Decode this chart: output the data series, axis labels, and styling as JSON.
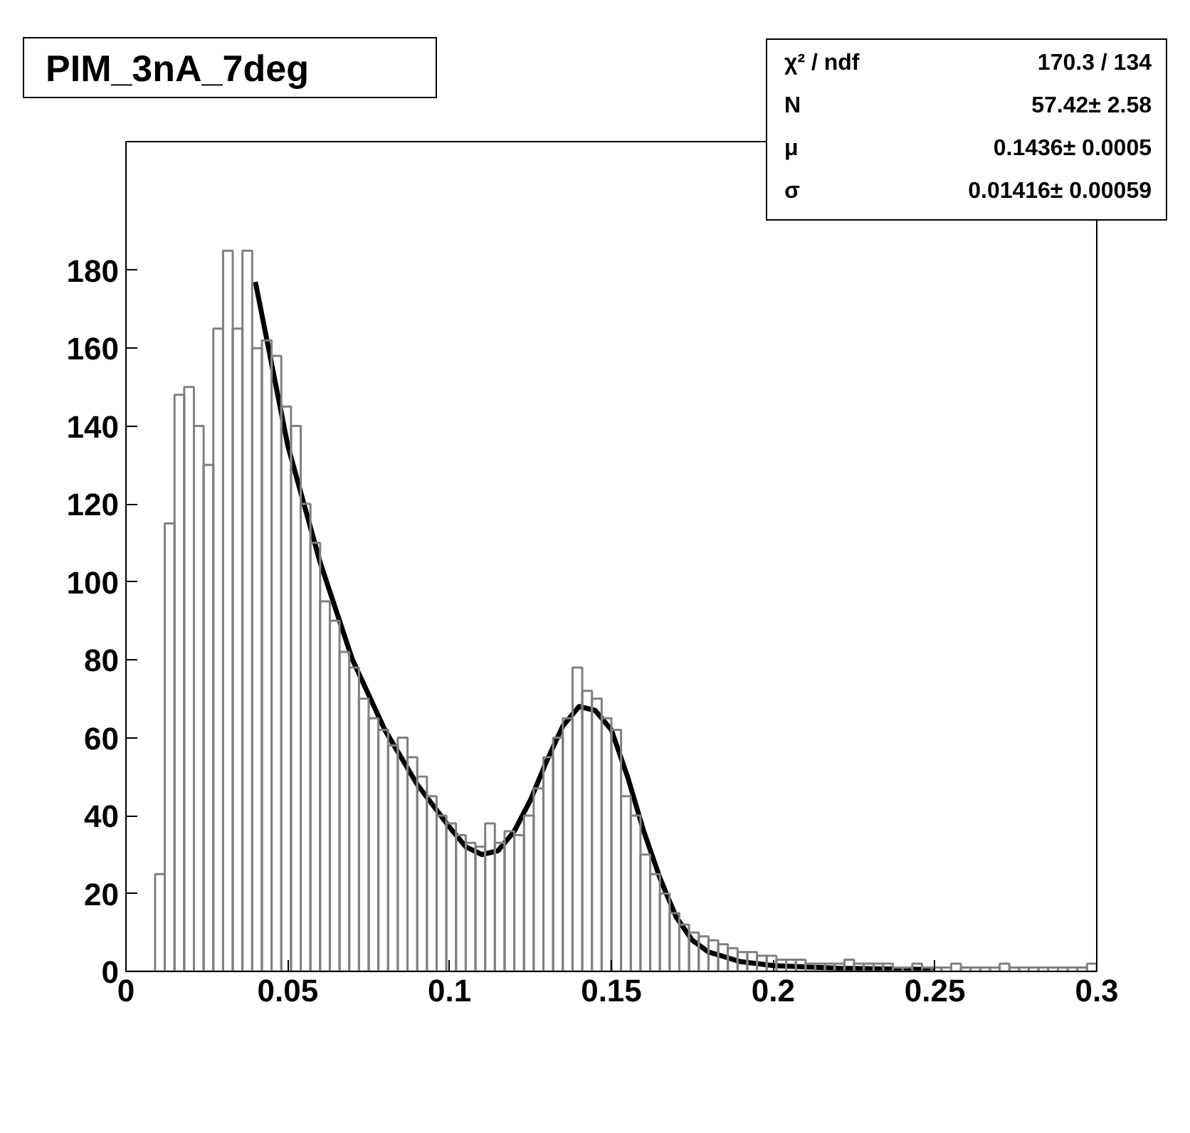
{
  "chart_data": {
    "type": "histogram",
    "title": "PIM_3nA_7deg",
    "bins": [
      0,
      0.003,
      0.006,
      0.009,
      0.012,
      0.015,
      0.018,
      0.021,
      0.024,
      0.027,
      0.03,
      0.033,
      0.036,
      0.039,
      0.042,
      0.045,
      0.048,
      0.051,
      0.054,
      0.057,
      0.06,
      0.063,
      0.066,
      0.069,
      0.072,
      0.075,
      0.078,
      0.081,
      0.084,
      0.087,
      0.09,
      0.093,
      0.096,
      0.099,
      0.102,
      0.105,
      0.108,
      0.111,
      0.114,
      0.117,
      0.12,
      0.123,
      0.126,
      0.129,
      0.132,
      0.135,
      0.138,
      0.141,
      0.144,
      0.147,
      0.15,
      0.153,
      0.156,
      0.159,
      0.162,
      0.165,
      0.168,
      0.171,
      0.174,
      0.177,
      0.18,
      0.183,
      0.186,
      0.189,
      0.192,
      0.195,
      0.198,
      0.201,
      0.204,
      0.207,
      0.21,
      0.213,
      0.216,
      0.219,
      0.222,
      0.225,
      0.228,
      0.231,
      0.234,
      0.237,
      0.24,
      0.243,
      0.246,
      0.249,
      0.252,
      0.255,
      0.258,
      0.261,
      0.264,
      0.267,
      0.27,
      0.273,
      0.276,
      0.279,
      0.282,
      0.285,
      0.288,
      0.291,
      0.294,
      0.297,
      0.3
    ],
    "values": [
      0,
      0,
      0,
      25,
      115,
      148,
      150,
      140,
      130,
      165,
      185,
      165,
      185,
      160,
      162,
      158,
      145,
      140,
      120,
      110,
      95,
      90,
      82,
      78,
      70,
      65,
      62,
      58,
      60,
      55,
      50,
      45,
      40,
      38,
      35,
      33,
      32,
      38,
      33,
      36,
      35,
      40,
      47,
      55,
      60,
      65,
      78,
      72,
      70,
      65,
      62,
      45,
      40,
      30,
      25,
      20,
      15,
      12,
      10,
      9,
      8,
      7,
      6,
      5,
      5,
      4,
      4,
      3,
      3,
      3,
      2,
      2,
      2,
      2,
      3,
      2,
      2,
      2,
      2,
      1,
      1,
      2,
      1,
      1,
      1,
      2,
      1,
      1,
      1,
      1,
      2,
      1,
      1,
      1,
      1,
      1,
      1,
      1,
      1,
      2
    ],
    "color": "#808080",
    "series": [
      {
        "type": "line",
        "color": "#000000",
        "x": [
          0.04,
          0.05,
          0.06,
          0.07,
          0.08,
          0.09,
          0.1,
          0.105,
          0.11,
          0.115,
          0.12,
          0.125,
          0.13,
          0.135,
          0.14,
          0.145,
          0.15,
          0.155,
          0.16,
          0.165,
          0.17,
          0.175,
          0.18,
          0.19,
          0.2,
          0.22,
          0.25
        ],
        "values": [
          177,
          135,
          105,
          80,
          62,
          48,
          37,
          32,
          30,
          31,
          36,
          44,
          54,
          63,
          68,
          67,
          62,
          50,
          36,
          24,
          14,
          8,
          5,
          2.5,
          1.5,
          0.8,
          0.5
        ]
      }
    ],
    "xlim": [
      0,
      0.3
    ],
    "ylim": [
      0,
      213
    ],
    "xticks": [
      0,
      0.05,
      0.1,
      0.15,
      0.2,
      0.25,
      0.3
    ],
    "yticks": [
      0,
      20,
      40,
      60,
      80,
      100,
      120,
      140,
      160,
      180
    ],
    "grid": false,
    "annotations": [
      "χ² / ndf",
      "170.3 / 134",
      "N",
      "57.42± 2.58",
      "μ",
      "0.1436± 0.0005",
      "σ",
      "0.01416± 0.00059"
    ]
  }
}
